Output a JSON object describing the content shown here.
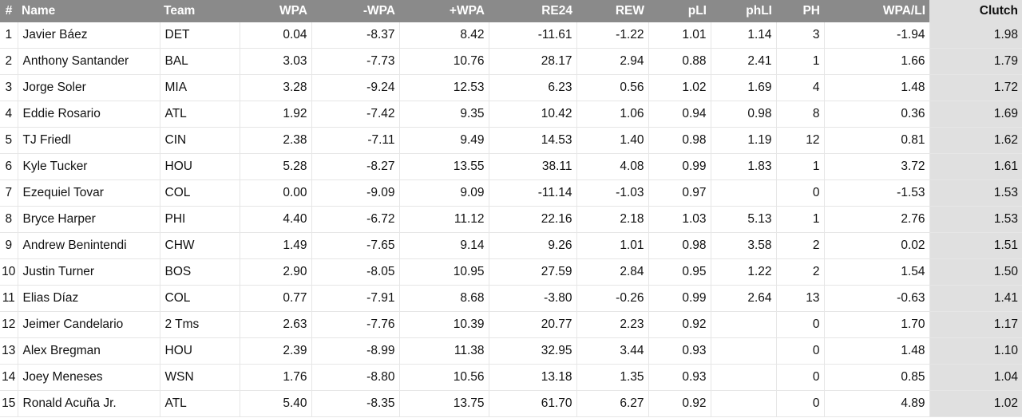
{
  "table": {
    "headers": [
      "#",
      "Name",
      "Team",
      "WPA",
      "-WPA",
      "+WPA",
      "RE24",
      "REW",
      "pLI",
      "phLI",
      "PH",
      "WPA/LI",
      "Clutch"
    ],
    "rows": [
      [
        "1",
        "Javier Báez",
        "DET",
        "0.04",
        "-8.37",
        "8.42",
        "-11.61",
        "-1.22",
        "1.01",
        "1.14",
        "3",
        "-1.94",
        "1.98"
      ],
      [
        "2",
        "Anthony Santander",
        "BAL",
        "3.03",
        "-7.73",
        "10.76",
        "28.17",
        "2.94",
        "0.88",
        "2.41",
        "1",
        "1.66",
        "1.79"
      ],
      [
        "3",
        "Jorge Soler",
        "MIA",
        "3.28",
        "-9.24",
        "12.53",
        "6.23",
        "0.56",
        "1.02",
        "1.69",
        "4",
        "1.48",
        "1.72"
      ],
      [
        "4",
        "Eddie Rosario",
        "ATL",
        "1.92",
        "-7.42",
        "9.35",
        "10.42",
        "1.06",
        "0.94",
        "0.98",
        "8",
        "0.36",
        "1.69"
      ],
      [
        "5",
        "TJ Friedl",
        "CIN",
        "2.38",
        "-7.11",
        "9.49",
        "14.53",
        "1.40",
        "0.98",
        "1.19",
        "12",
        "0.81",
        "1.62"
      ],
      [
        "6",
        "Kyle Tucker",
        "HOU",
        "5.28",
        "-8.27",
        "13.55",
        "38.11",
        "4.08",
        "0.99",
        "1.83",
        "1",
        "3.72",
        "1.61"
      ],
      [
        "7",
        "Ezequiel Tovar",
        "COL",
        "0.00",
        "-9.09",
        "9.09",
        "-11.14",
        "-1.03",
        "0.97",
        null,
        "0",
        "-1.53",
        "1.53"
      ],
      [
        "8",
        "Bryce Harper",
        "PHI",
        "4.40",
        "-6.72",
        "11.12",
        "22.16",
        "2.18",
        "1.03",
        "5.13",
        "1",
        "2.76",
        "1.53"
      ],
      [
        "9",
        "Andrew Benintendi",
        "CHW",
        "1.49",
        "-7.65",
        "9.14",
        "9.26",
        "1.01",
        "0.98",
        "3.58",
        "2",
        "0.02",
        "1.51"
      ],
      [
        "10",
        "Justin Turner",
        "BOS",
        "2.90",
        "-8.05",
        "10.95",
        "27.59",
        "2.84",
        "0.95",
        "1.22",
        "2",
        "1.54",
        "1.50"
      ],
      [
        "11",
        "Elias Díaz",
        "COL",
        "0.77",
        "-7.91",
        "8.68",
        "-3.80",
        "-0.26",
        "0.99",
        "2.64",
        "13",
        "-0.63",
        "1.41"
      ],
      [
        "12",
        "Jeimer Candelario",
        "2 Tms",
        "2.63",
        "-7.76",
        "10.39",
        "20.77",
        "2.23",
        "0.92",
        null,
        "0",
        "1.70",
        "1.17"
      ],
      [
        "13",
        "Alex Bregman",
        "HOU",
        "2.39",
        "-8.99",
        "11.38",
        "32.95",
        "3.44",
        "0.93",
        null,
        "0",
        "1.48",
        "1.10"
      ],
      [
        "14",
        "Joey Meneses",
        "WSN",
        "1.76",
        "-8.80",
        "10.56",
        "13.18",
        "1.35",
        "0.93",
        null,
        "0",
        "0.85",
        "1.04"
      ],
      [
        "15",
        "Ronald Acuña Jr.",
        "ATL",
        "5.40",
        "-8.35",
        "13.75",
        "61.70",
        "6.27",
        "0.92",
        null,
        "0",
        "4.89",
        "1.02"
      ]
    ]
  }
}
